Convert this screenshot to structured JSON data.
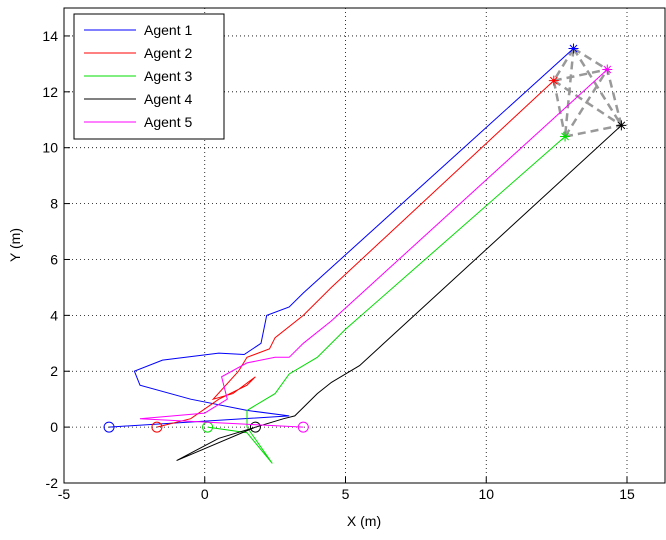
{
  "chart_data": {
    "type": "line",
    "x_label": "X (m)",
    "y_label": "Y (m)",
    "xlim": [
      -5,
      16.35
    ],
    "ylim": [
      -2,
      15
    ],
    "xticks": [
      -5,
      0,
      5,
      10,
      15
    ],
    "yticks": [
      -2,
      0,
      2,
      4,
      6,
      8,
      10,
      12,
      14
    ],
    "grid": true,
    "legend": "upper left",
    "series": [
      {
        "name": "Agent 1",
        "color": "#0000ff",
        "x": [
          -3.4,
          3.0,
          1.5,
          -0.5,
          -2.3,
          -2.5,
          -1.5,
          0.5,
          1.4,
          2.0,
          2.2,
          3.0,
          3.5,
          13.1
        ],
        "values": [
          0,
          0.4,
          0.6,
          1.0,
          1.5,
          2.0,
          2.4,
          2.65,
          2.6,
          3.0,
          4.0,
          4.3,
          4.8,
          13.55
        ]
      },
      {
        "name": "Agent 2",
        "color": "#ff0000",
        "x": [
          -1.7,
          -0.5,
          0.5,
          1.5,
          1.8,
          1.0,
          0.3,
          1.2,
          1.5,
          2.3,
          2.5,
          3.5,
          4.5,
          12.4
        ],
        "values": [
          0,
          0.3,
          1.0,
          1.5,
          1.8,
          1.2,
          1.0,
          2.0,
          2.5,
          2.8,
          3.2,
          4.0,
          5.0,
          12.4
        ]
      },
      {
        "name": "Agent 3",
        "color": "#00dd00",
        "x": [
          0.1,
          1.5,
          2.4,
          1.5,
          1.5,
          2.5,
          3.0,
          4.0,
          5.0,
          12.8
        ],
        "values": [
          0,
          -0.2,
          -1.3,
          0,
          0.6,
          1.2,
          1.9,
          2.5,
          3.5,
          10.4
        ]
      },
      {
        "name": "Agent 4",
        "color": "#000000",
        "x": [
          1.8,
          -1.0,
          0.5,
          2.8,
          3.2,
          4.0,
          4.5,
          5.5,
          14.8
        ],
        "values": [
          0,
          -1.2,
          -0.4,
          0.3,
          0.4,
          1.2,
          1.6,
          2.2,
          10.8
        ]
      },
      {
        "name": "Agent 5",
        "color": "#ff00ff",
        "x": [
          3.5,
          1.5,
          -2.3,
          0.0,
          0.8,
          0.6,
          1.5,
          2.5,
          3.0,
          3.5,
          4.5,
          14.3
        ],
        "values": [
          0,
          0.1,
          0.3,
          0.5,
          1.0,
          1.8,
          2.3,
          2.5,
          2.5,
          3.0,
          3.8,
          12.8
        ]
      }
    ]
  }
}
